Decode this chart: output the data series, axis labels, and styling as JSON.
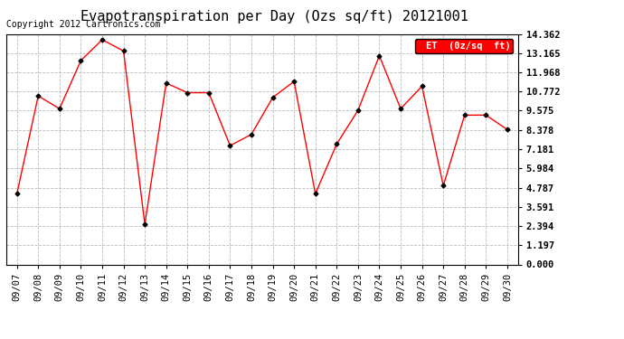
{
  "title": "Evapotranspiration per Day (Ozs sq/ft) 20121001",
  "copyright": "Copyright 2012 Cartronics.com",
  "legend_label": "ET  (0z/sq  ft)",
  "dates": [
    "09/07",
    "09/08",
    "09/09",
    "09/10",
    "09/11",
    "09/12",
    "09/13",
    "09/14",
    "09/15",
    "09/16",
    "09/17",
    "09/18",
    "09/19",
    "09/20",
    "09/21",
    "09/22",
    "09/23",
    "09/24",
    "09/25",
    "09/26",
    "09/27",
    "09/28",
    "09/29",
    "09/30"
  ],
  "values": [
    4.4,
    10.5,
    9.7,
    12.7,
    14.0,
    13.3,
    2.5,
    11.3,
    10.7,
    10.7,
    7.4,
    8.1,
    10.4,
    11.4,
    4.4,
    7.5,
    9.6,
    13.0,
    9.7,
    11.1,
    4.9,
    9.3,
    9.3,
    8.4
  ],
  "line_color": "red",
  "marker_color": "black",
  "background_color": "white",
  "grid_color": "#bbbbbb",
  "ylim": [
    0.0,
    14.362
  ],
  "yticks": [
    0.0,
    1.197,
    2.394,
    3.591,
    4.787,
    5.984,
    7.181,
    8.378,
    9.575,
    10.772,
    11.968,
    13.165,
    14.362
  ],
  "title_fontsize": 11,
  "copyright_fontsize": 7,
  "tick_fontsize": 7.5,
  "legend_bg": "red",
  "legend_text_color": "white"
}
